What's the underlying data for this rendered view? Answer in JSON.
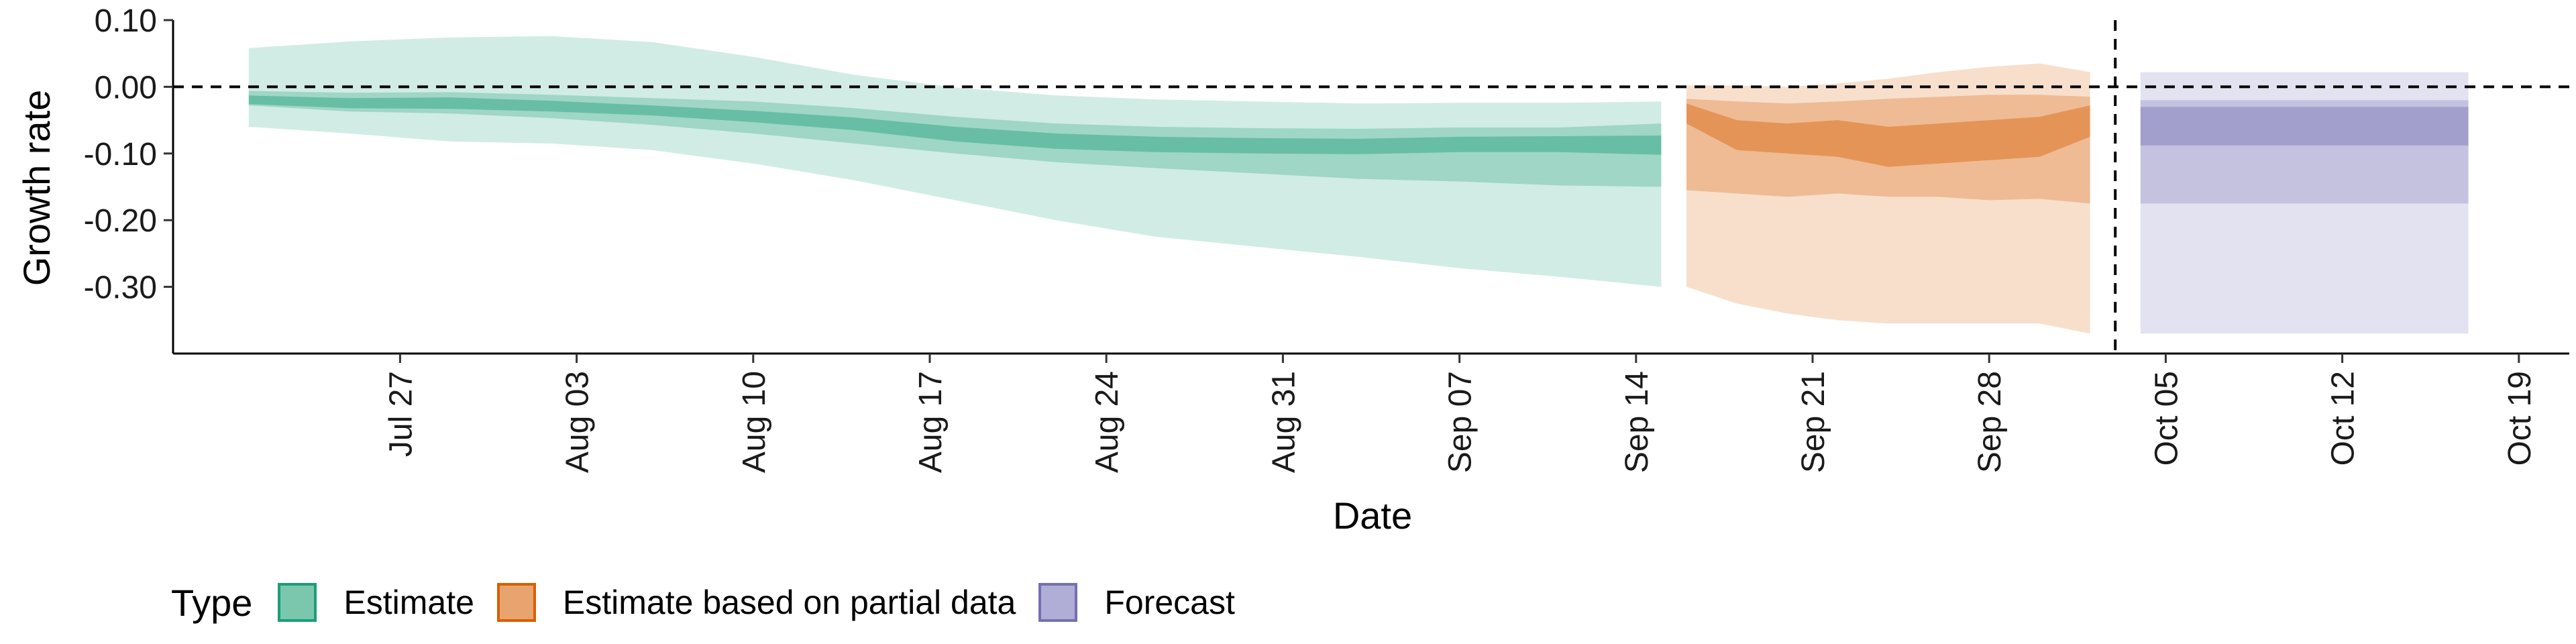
{
  "chart_data": {
    "type": "area",
    "xlabel": "Date",
    "ylabel": "Growth rate",
    "ylim": [
      -0.4,
      0.1
    ],
    "xlim": [
      "2020-07-18",
      "2020-10-21"
    ],
    "y_ticks": [
      0.1,
      0.0,
      -0.1,
      -0.2,
      -0.3
    ],
    "y_tick_labels": [
      "0.10",
      "0.00",
      "-0.10",
      "-0.20",
      "-0.30"
    ],
    "x_ticks": [
      "2020-07-27",
      "2020-08-03",
      "2020-08-10",
      "2020-08-17",
      "2020-08-24",
      "2020-08-31",
      "2020-09-07",
      "2020-09-14",
      "2020-09-21",
      "2020-09-28",
      "2020-10-05",
      "2020-10-12",
      "2020-10-19"
    ],
    "x_tick_labels": [
      "Jul 27",
      "Aug 03",
      "Aug 10",
      "Aug 17",
      "Aug 24",
      "Aug 31",
      "Sep 07",
      "Sep 14",
      "Sep 21",
      "Sep 28",
      "Oct 05",
      "Oct 12",
      "Oct 19"
    ],
    "reference_lines": {
      "horizontal_y": 0,
      "vertical_x": "2020-10-03"
    },
    "grid": false,
    "legend_position": "bottom-left",
    "series": [
      {
        "name": "Estimate",
        "color": "#1b9e77",
        "x": [
          "2020-07-21",
          "2020-07-25",
          "2020-07-29",
          "2020-08-02",
          "2020-08-06",
          "2020-08-10",
          "2020-08-14",
          "2020-08-18",
          "2020-08-22",
          "2020-08-26",
          "2020-08-30",
          "2020-09-03",
          "2020-09-07",
          "2020-09-11",
          "2020-09-15"
        ],
        "upper_90": [
          0.058,
          0.068,
          0.074,
          0.076,
          0.067,
          0.045,
          0.018,
          -0.001,
          -0.013,
          -0.019,
          -0.022,
          -0.025,
          -0.024,
          -0.024,
          -0.022
        ],
        "upper_50": [
          -0.006,
          -0.009,
          -0.008,
          -0.012,
          -0.017,
          -0.022,
          -0.032,
          -0.045,
          -0.055,
          -0.06,
          -0.062,
          -0.063,
          -0.061,
          -0.061,
          -0.055
        ],
        "upper_20": [
          -0.013,
          -0.017,
          -0.016,
          -0.021,
          -0.028,
          -0.036,
          -0.046,
          -0.06,
          -0.07,
          -0.075,
          -0.077,
          -0.078,
          -0.075,
          -0.074,
          -0.073
        ],
        "median": [
          -0.017,
          -0.02,
          -0.02,
          -0.025,
          -0.03,
          -0.038,
          -0.05,
          -0.065,
          -0.075,
          -0.08,
          -0.082,
          -0.083,
          -0.08,
          -0.08,
          -0.085
        ],
        "lower_20": [
          -0.026,
          -0.032,
          -0.033,
          -0.037,
          -0.043,
          -0.053,
          -0.065,
          -0.082,
          -0.093,
          -0.098,
          -0.1,
          -0.101,
          -0.098,
          -0.098,
          -0.102
        ],
        "lower_50": [
          -0.028,
          -0.037,
          -0.04,
          -0.047,
          -0.057,
          -0.07,
          -0.085,
          -0.1,
          -0.113,
          -0.122,
          -0.13,
          -0.138,
          -0.142,
          -0.148,
          -0.15
        ],
        "lower_90": [
          -0.06,
          -0.07,
          -0.082,
          -0.085,
          -0.095,
          -0.115,
          -0.14,
          -0.17,
          -0.2,
          -0.225,
          -0.24,
          -0.255,
          -0.272,
          -0.285,
          -0.3
        ]
      },
      {
        "name": "Estimate based on partial data",
        "color": "#d95f02",
        "x": [
          "2020-09-16",
          "2020-09-18",
          "2020-09-20",
          "2020-09-22",
          "2020-09-24",
          "2020-09-26",
          "2020-09-28",
          "2020-09-30",
          "2020-10-02"
        ],
        "upper_90": [
          0.002,
          0.002,
          0.0,
          0.005,
          0.012,
          0.022,
          0.03,
          0.035,
          0.022
        ],
        "upper_50": [
          -0.018,
          -0.022,
          -0.025,
          -0.022,
          -0.018,
          -0.015,
          -0.012,
          -0.012,
          -0.015
        ],
        "upper_20": [
          -0.025,
          -0.05,
          -0.055,
          -0.05,
          -0.06,
          -0.055,
          -0.05,
          -0.045,
          -0.028
        ],
        "median": [
          -0.04,
          -0.07,
          -0.08,
          -0.085,
          -0.09,
          -0.085,
          -0.08,
          -0.075,
          -0.05
        ],
        "lower_20": [
          -0.055,
          -0.095,
          -0.1,
          -0.105,
          -0.12,
          -0.115,
          -0.11,
          -0.105,
          -0.075
        ],
        "lower_50": [
          -0.155,
          -0.16,
          -0.165,
          -0.16,
          -0.165,
          -0.165,
          -0.17,
          -0.168,
          -0.175
        ],
        "lower_90": [
          -0.3,
          -0.325,
          -0.34,
          -0.35,
          -0.355,
          -0.355,
          -0.355,
          -0.355,
          -0.37
        ]
      },
      {
        "name": "Forecast",
        "color": "#7570b3",
        "x": [
          "2020-10-04",
          "2020-10-17"
        ],
        "upper_90": [
          0.022,
          0.022
        ],
        "upper_50": [
          -0.02,
          -0.02
        ],
        "upper_20": [
          -0.03,
          -0.03
        ],
        "median": [
          -0.05,
          -0.05
        ],
        "lower_20": [
          -0.088,
          -0.088
        ],
        "lower_50": [
          -0.175,
          -0.175
        ],
        "lower_90": [
          -0.37,
          -0.37
        ]
      }
    ]
  },
  "legend": {
    "title": "Type",
    "items": [
      {
        "label": "Estimate",
        "fill": "#7bc7ad",
        "border": "#1b9e77"
      },
      {
        "label": "Estimate based on partial data",
        "fill": "#e8a46f",
        "border": "#d95f02"
      },
      {
        "label": "Forecast",
        "fill": "#b0add6",
        "border": "#7570b3"
      }
    ]
  }
}
